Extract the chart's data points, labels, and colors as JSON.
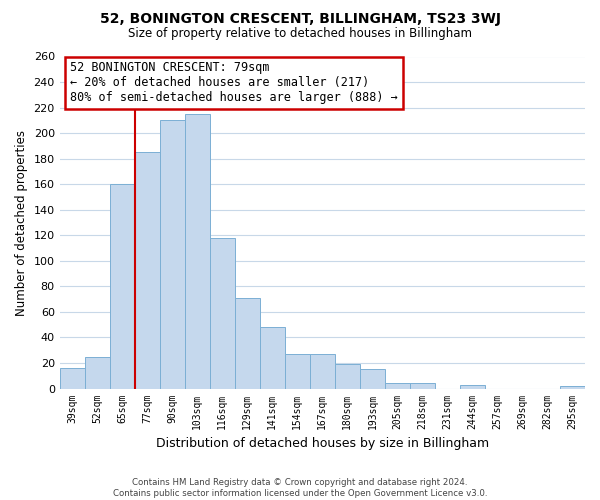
{
  "title": "52, BONINGTON CRESCENT, BILLINGHAM, TS23 3WJ",
  "subtitle": "Size of property relative to detached houses in Billingham",
  "xlabel": "Distribution of detached houses by size in Billingham",
  "ylabel": "Number of detached properties",
  "categories": [
    "39sqm",
    "52sqm",
    "65sqm",
    "77sqm",
    "90sqm",
    "103sqm",
    "116sqm",
    "129sqm",
    "141sqm",
    "154sqm",
    "167sqm",
    "180sqm",
    "193sqm",
    "205sqm",
    "218sqm",
    "231sqm",
    "244sqm",
    "257sqm",
    "269sqm",
    "282sqm",
    "295sqm"
  ],
  "values": [
    16,
    25,
    160,
    185,
    210,
    215,
    118,
    71,
    48,
    27,
    27,
    19,
    15,
    4,
    4,
    0,
    3,
    0,
    0,
    0,
    2
  ],
  "bar_color": "#c5d8ed",
  "bar_edge_color": "#7bafd4",
  "highlight_index": 3,
  "highlight_line_color": "#cc0000",
  "annotation_title": "52 BONINGTON CRESCENT: 79sqm",
  "annotation_line1": "← 20% of detached houses are smaller (217)",
  "annotation_line2": "80% of semi-detached houses are larger (888) →",
  "annotation_box_color": "#ffffff",
  "annotation_box_edge_color": "#cc0000",
  "footer_line1": "Contains HM Land Registry data © Crown copyright and database right 2024.",
  "footer_line2": "Contains public sector information licensed under the Open Government Licence v3.0.",
  "ylim": [
    0,
    260
  ],
  "yticks": [
    0,
    20,
    40,
    60,
    80,
    100,
    120,
    140,
    160,
    180,
    200,
    220,
    240,
    260
  ],
  "background_color": "#ffffff",
  "grid_color": "#c8d8e8",
  "figsize": [
    6.0,
    5.0
  ],
  "dpi": 100
}
